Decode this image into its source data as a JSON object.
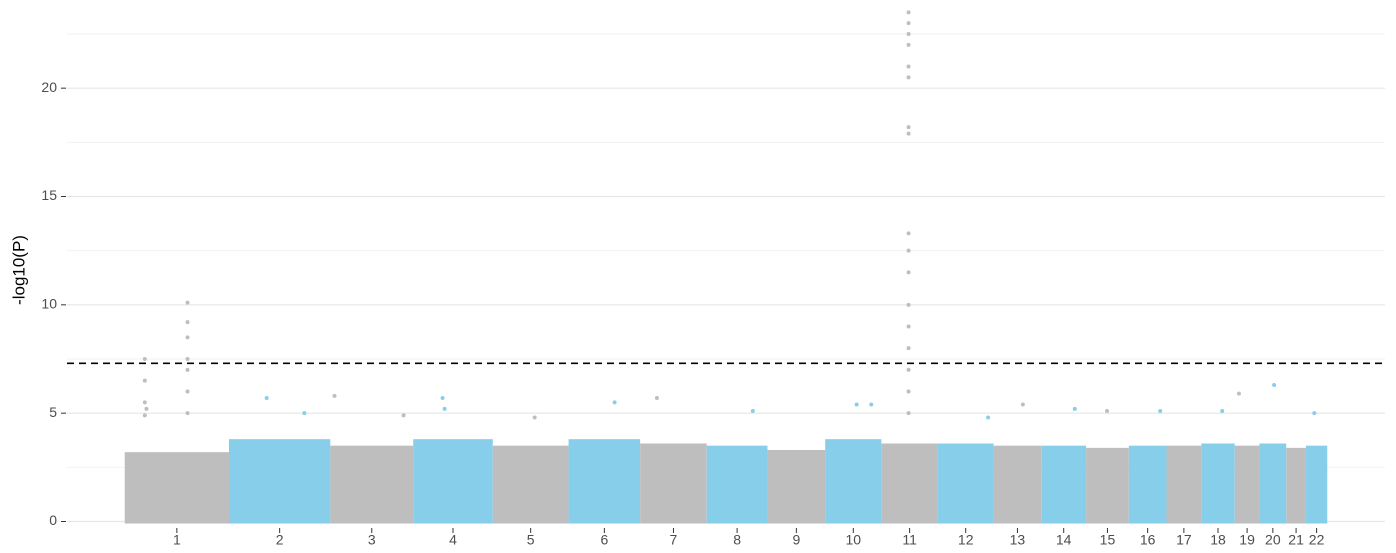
{
  "chart_data": {
    "type": "manhattan",
    "y_label": "-log10(P)",
    "categories": [
      "1",
      "2",
      "3",
      "4",
      "5",
      "6",
      "7",
      "8",
      "9",
      "10",
      "11",
      "12",
      "13",
      "14",
      "15",
      "16",
      "17",
      "18",
      "19",
      "20",
      "21",
      "22"
    ],
    "lengths": [
      249,
      242,
      198,
      190,
      181,
      171,
      159,
      145,
      138,
      134,
      135,
      133,
      114,
      107,
      102,
      90,
      83,
      80,
      59,
      64,
      47,
      51
    ],
    "colors": [
      "#bebebe",
      "#87ceeb"
    ],
    "bulk_top": [
      3.2,
      3.8,
      3.5,
      3.8,
      3.5,
      3.8,
      3.6,
      3.5,
      3.3,
      3.8,
      3.6,
      3.6,
      3.5,
      3.5,
      3.4,
      3.5,
      3.5,
      3.6,
      3.5,
      3.6,
      3.4,
      3.5
    ],
    "peaks": [
      {
        "x": [
          48,
          48,
          48,
          48,
          52,
          150,
          150,
          150,
          150,
          150,
          150,
          150
        ],
        "values": [
          7.5,
          6.5,
          5.5,
          4.9,
          5.2,
          10.1,
          9.2,
          8.5,
          7.5,
          7.0,
          6.0,
          5.0
        ]
      },
      {
        "x": [
          90,
          180
        ],
        "values": [
          5.7,
          5.0
        ]
      },
      {
        "x": [
          10,
          175
        ],
        "values": [
          5.8,
          4.9
        ]
      },
      {
        "x": [
          70,
          75
        ],
        "values": [
          5.7,
          5.2
        ]
      },
      {
        "x": [
          100
        ],
        "values": [
          4.8
        ]
      },
      {
        "x": [
          110
        ],
        "values": [
          5.5
        ]
      },
      {
        "x": [
          40
        ],
        "values": [
          5.7
        ]
      },
      {
        "x": [
          110
        ],
        "values": [
          5.1
        ]
      },
      {
        "x": [],
        "values": []
      },
      {
        "x": [
          75,
          110
        ],
        "values": [
          5.4,
          5.4
        ]
      },
      {
        "x": [
          65,
          65,
          65,
          65,
          65,
          65,
          65,
          65,
          65,
          65,
          65,
          65,
          65,
          65,
          65,
          65,
          65
        ],
        "values": [
          23.5,
          23.0,
          22.5,
          22.0,
          21.0,
          20.5,
          18.2,
          17.9,
          13.3,
          12.5,
          11.5,
          10.0,
          9.0,
          8.0,
          7.0,
          6.0,
          5.0
        ]
      },
      {
        "x": [
          120
        ],
        "values": [
          4.8
        ]
      },
      {
        "x": [
          70
        ],
        "values": [
          5.4
        ]
      },
      {
        "x": [
          80
        ],
        "values": [
          5.2
        ]
      },
      {
        "x": [
          50
        ],
        "values": [
          5.1
        ]
      },
      {
        "x": [
          75
        ],
        "values": [
          5.1
        ]
      },
      {
        "x": [],
        "values": []
      },
      {
        "x": [
          50
        ],
        "values": [
          5.1
        ]
      },
      {
        "x": [
          10
        ],
        "values": [
          5.9
        ]
      },
      {
        "x": [
          35
        ],
        "values": [
          6.3
        ]
      },
      {
        "x": [],
        "values": []
      },
      {
        "x": [
          20
        ],
        "values": [
          5.0
        ]
      }
    ],
    "threshold": 7.3,
    "ylim": [
      -0.3,
      23.7
    ],
    "yticks": [
      0,
      5,
      10,
      15,
      20
    ],
    "minor_yticks": [
      2.5,
      7.5,
      12.5,
      17.5,
      22.5
    ],
    "grid": true
  }
}
